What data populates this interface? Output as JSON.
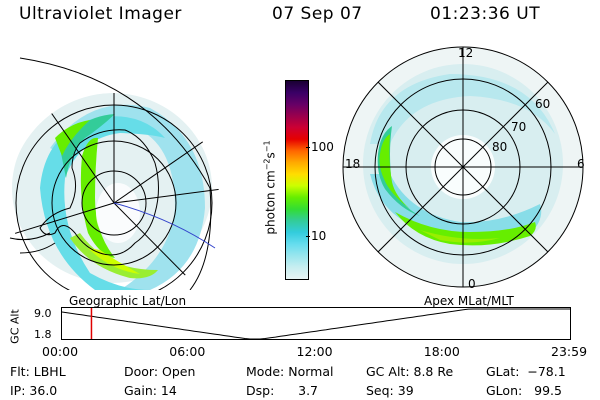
{
  "header": {
    "instrument": "Ultraviolet Imager",
    "date": "07 Sep 07",
    "time": "01:23:36 UT"
  },
  "colorbar": {
    "unit_label": "photon cm",
    "unit_exp1": "−2",
    "unit_mid": "s",
    "unit_exp2": "−1",
    "tick_100": "100",
    "tick_10": "10",
    "colors": [
      "#1a0033",
      "#3a0066",
      "#660066",
      "#99004d",
      "#cc0033",
      "#e60000",
      "#ff6600",
      "#ffaa00",
      "#ffdd00",
      "#ccff00",
      "#66ee00",
      "#33dd33",
      "#33cc99",
      "#33ccdd",
      "#66ddee",
      "#99e6ee",
      "#c8eef0",
      "#e8f4f4"
    ]
  },
  "maps": {
    "left_label": "Geographic Lat/Lon",
    "right_label": "Apex MLat/MLT",
    "mlt_labels": {
      "top": "12",
      "left": "18",
      "right": "6",
      "bottom": "0"
    },
    "mlat_labels": [
      "60",
      "70",
      "80"
    ]
  },
  "altitude_plot": {
    "ylabel": "GC Alt",
    "ytick_top": "9.0",
    "ytick_bottom": "1.8",
    "xticks": [
      "00:00",
      "06:00",
      "12:00",
      "18:00",
      "23:59"
    ],
    "current_time_fraction": 0.058
  },
  "status": {
    "flt": "Flt: LBHL",
    "ip": "IP: 36.0",
    "door": "Door: Open",
    "gain": "Gain: 14",
    "mode": "Mode: Normal",
    "dsp": "Dsp:      3.7",
    "gc_alt": "GC Alt: 8.8 Re",
    "seq": "Seq: 39",
    "glat": "GLat:  −78.1",
    "glon": "GLon:   99.5"
  }
}
